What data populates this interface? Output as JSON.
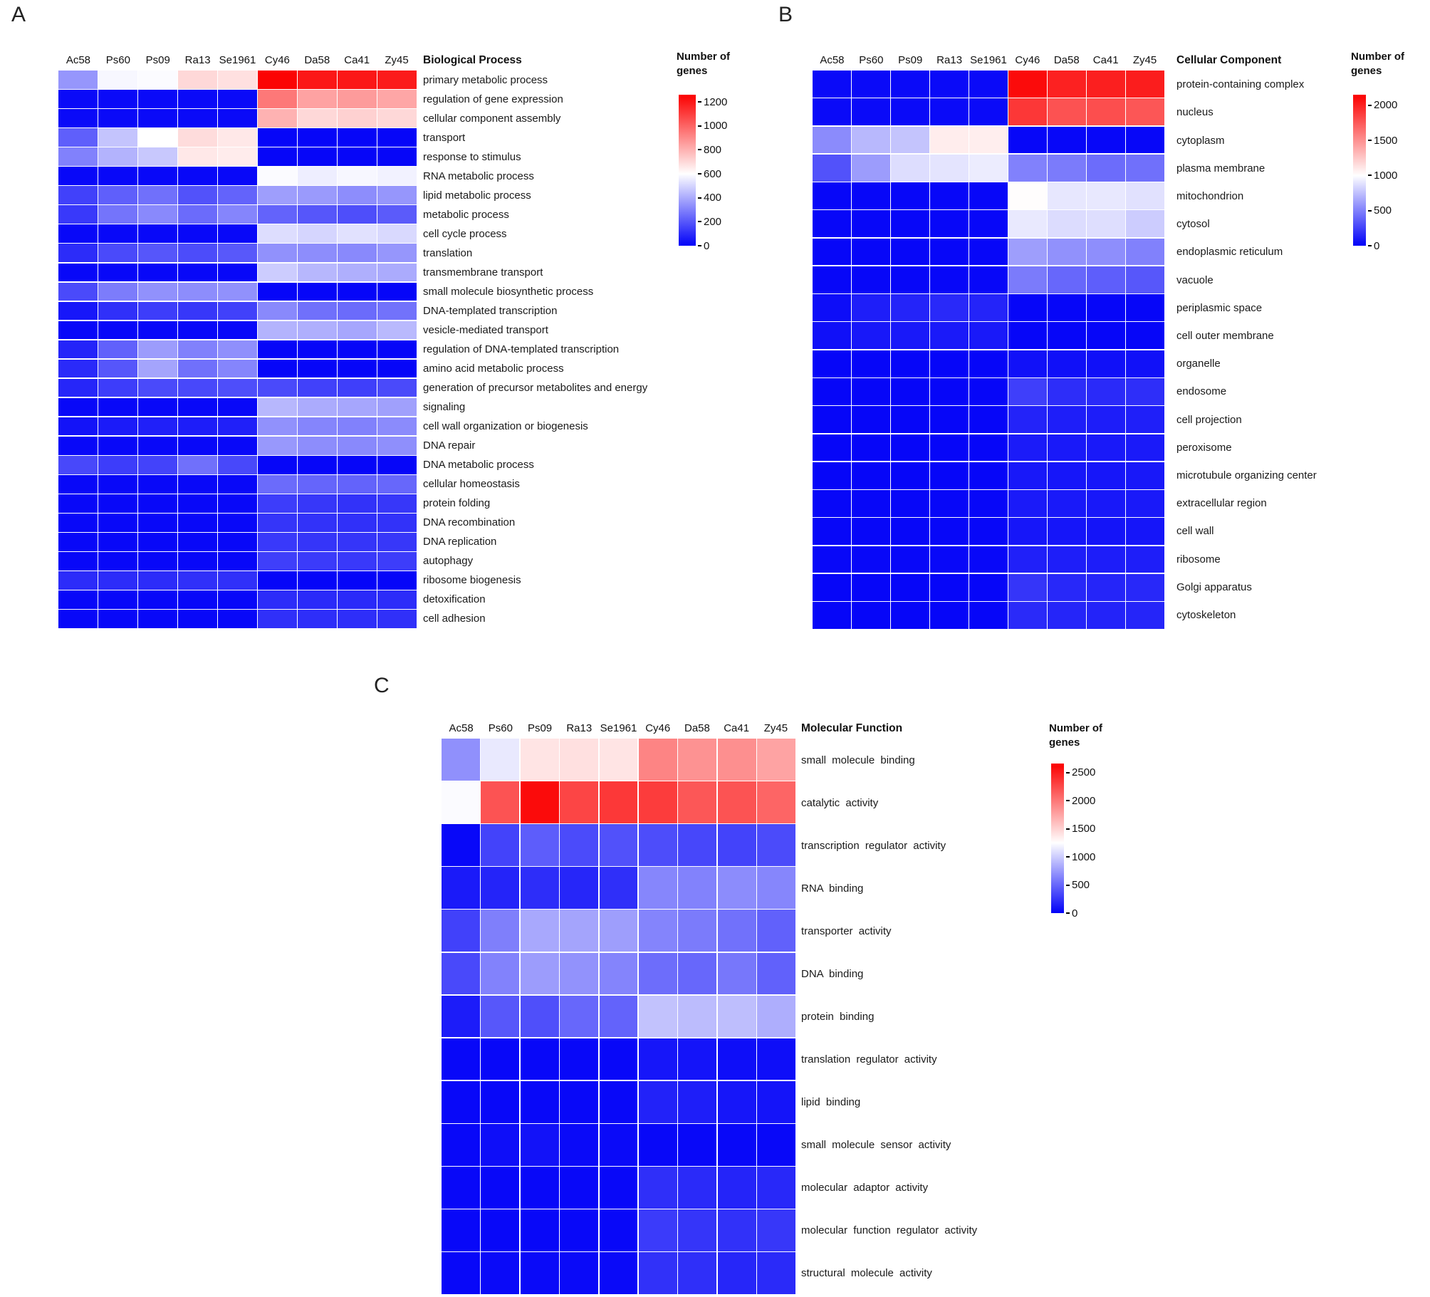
{
  "figure": {
    "background": "#ffffff"
  },
  "colors": {
    "scale_low": "#0202f8",
    "scale_mid": "#ffffff",
    "scale_high": "#fb0000",
    "grid_line": "#ffffff",
    "text": "#1a1a1a"
  },
  "chart_data": [
    {
      "type": "heatmap",
      "panel_label": "A",
      "title": "Biological Process",
      "legend_title": "Number of genes",
      "colormap": "blue-white-red",
      "legend_position": "right",
      "grid": "white lines between cells",
      "columns": [
        "Ac58",
        "Ps60",
        "Ps09",
        "Ra13",
        "Se1961",
        "Cy46",
        "Da58",
        "Ca41",
        "Zy45"
      ],
      "scale": {
        "min": 0,
        "white_at": 600,
        "max": 1260,
        "ticks": [
          1200,
          1000,
          800,
          600,
          400,
          200,
          0
        ]
      },
      "rows": [
        "primary metabolic process",
        "regulation of gene expression",
        "cellular component assembly",
        "transport",
        "response to stimulus",
        "RNA metabolic process",
        "lipid metabolic process",
        "metabolic process",
        "cell cycle process",
        "translation",
        "transmembrane transport",
        "small molecule biosynthetic process",
        "DNA-templated transcription",
        "vesicle-mediated transport",
        "regulation of DNA-templated transcription",
        "amino acid metabolic process",
        "generation of precursor metabolites and energy",
        "signaling",
        "cell wall organization or biogenesis",
        "DNA repair",
        "DNA metabolic process",
        "cellular homeostasis",
        "protein folding",
        "DNA recombination",
        "DNA replication",
        "autophagy",
        "ribosome biogenesis",
        "detoxification",
        "cell adhesion"
      ],
      "values": [
        [
          350,
          580,
          590,
          700,
          680,
          1250,
          1200,
          1200,
          1190
        ],
        [
          20,
          20,
          20,
          20,
          20,
          950,
          840,
          860,
          830
        ],
        [
          20,
          20,
          20,
          20,
          20,
          800,
          700,
          720,
          700
        ],
        [
          220,
          460,
          600,
          690,
          660,
          10,
          10,
          10,
          10
        ],
        [
          300,
          420,
          470,
          660,
          650,
          10,
          10,
          10,
          10
        ],
        [
          15,
          15,
          15,
          15,
          15,
          590,
          560,
          580,
          570
        ],
        [
          150,
          220,
          260,
          190,
          230,
          370,
          360,
          330,
          350
        ],
        [
          130,
          270,
          320,
          250,
          310,
          230,
          200,
          180,
          210
        ],
        [
          15,
          15,
          15,
          15,
          15,
          520,
          500,
          530,
          510
        ],
        [
          100,
          170,
          200,
          175,
          205,
          340,
          330,
          320,
          350
        ],
        [
          15,
          15,
          15,
          15,
          15,
          480,
          430,
          410,
          400
        ],
        [
          170,
          290,
          340,
          330,
          340,
          10,
          10,
          10,
          10
        ],
        [
          50,
          110,
          140,
          125,
          150,
          320,
          260,
          250,
          265
        ],
        [
          15,
          15,
          15,
          15,
          15,
          420,
          410,
          390,
          435
        ],
        [
          80,
          225,
          365,
          300,
          335,
          10,
          10,
          10,
          10
        ],
        [
          95,
          200,
          385,
          260,
          310,
          10,
          10,
          10,
          10
        ],
        [
          85,
          140,
          170,
          165,
          180,
          170,
          150,
          145,
          170
        ],
        [
          15,
          15,
          15,
          15,
          15,
          430,
          400,
          390,
          375
        ],
        [
          40,
          60,
          70,
          65,
          70,
          340,
          310,
          300,
          325
        ],
        [
          15,
          15,
          15,
          15,
          15,
          355,
          330,
          320,
          335
        ],
        [
          165,
          140,
          155,
          260,
          165,
          10,
          10,
          10,
          10
        ],
        [
          15,
          15,
          15,
          15,
          15,
          250,
          235,
          230,
          240
        ],
        [
          15,
          15,
          15,
          15,
          15,
          140,
          125,
          115,
          125
        ],
        [
          15,
          15,
          15,
          15,
          15,
          120,
          115,
          110,
          115
        ],
        [
          15,
          15,
          15,
          15,
          15,
          130,
          120,
          120,
          125
        ],
        [
          15,
          15,
          15,
          15,
          15,
          145,
          135,
          130,
          140
        ],
        [
          100,
          100,
          100,
          110,
          110,
          10,
          10,
          10,
          10
        ],
        [
          15,
          15,
          15,
          15,
          15,
          100,
          95,
          95,
          100
        ],
        [
          15,
          15,
          15,
          15,
          15,
          110,
          105,
          105,
          110
        ]
      ]
    },
    {
      "type": "heatmap",
      "panel_label": "B",
      "title": "Cellular Component",
      "legend_title": "Number of genes",
      "colormap": "blue-white-red",
      "legend_position": "right",
      "grid": "white lines between cells",
      "columns": [
        "Ac58",
        "Ps60",
        "Ps09",
        "Ra13",
        "Se1961",
        "Cy46",
        "Da58",
        "Ca41",
        "Zy45"
      ],
      "scale": {
        "min": 0,
        "white_at": 1000,
        "max": 2150,
        "ticks": [
          2000,
          1500,
          1000,
          500,
          0
        ]
      },
      "rows": [
        "protein-containing complex",
        "nucleus",
        "cytoplasm",
        "plasma membrane",
        "mitochondrion",
        "cytosol",
        "endoplasmic reticulum",
        "vacuole",
        "periplasmic space",
        "cell outer membrane",
        "organelle",
        "endosome",
        "cell projection",
        "peroxisome",
        "microtubule organizing center",
        "extracellular region",
        "cell wall",
        "ribosome",
        "Golgi apparatus",
        "cytoskeleton"
      ],
      "values": [
        [
          30,
          30,
          30,
          30,
          30,
          2100,
          2000,
          2010,
          2020
        ],
        [
          30,
          30,
          30,
          30,
          30,
          1900,
          1780,
          1800,
          1760
        ],
        [
          540,
          720,
          765,
          1080,
          1075,
          20,
          20,
          20,
          20
        ],
        [
          315,
          610,
          865,
          895,
          925,
          500,
          480,
          420,
          435
        ],
        [
          20,
          20,
          20,
          20,
          20,
          1010,
          905,
          910,
          880
        ],
        [
          20,
          20,
          20,
          20,
          20,
          915,
          860,
          870,
          800
        ],
        [
          20,
          20,
          20,
          20,
          20,
          615,
          565,
          555,
          500
        ],
        [
          20,
          20,
          20,
          20,
          20,
          480,
          400,
          365,
          335
        ],
        [
          45,
          110,
          135,
          155,
          135,
          15,
          15,
          15,
          15
        ],
        [
          55,
          85,
          90,
          95,
          90,
          15,
          15,
          15,
          15
        ],
        [
          15,
          15,
          15,
          15,
          15,
          60,
          55,
          55,
          60
        ],
        [
          15,
          15,
          15,
          15,
          15,
          240,
          170,
          160,
          175
        ],
        [
          15,
          15,
          15,
          15,
          15,
          130,
          110,
          105,
          115
        ],
        [
          15,
          15,
          15,
          15,
          15,
          100,
          90,
          90,
          95
        ],
        [
          15,
          15,
          15,
          15,
          15,
          85,
          80,
          80,
          85
        ],
        [
          20,
          20,
          20,
          20,
          20,
          95,
          90,
          85,
          90
        ],
        [
          20,
          20,
          20,
          20,
          20,
          80,
          75,
          70,
          75
        ],
        [
          25,
          25,
          25,
          25,
          25,
          120,
          110,
          105,
          110
        ],
        [
          15,
          15,
          15,
          15,
          15,
          200,
          150,
          140,
          150
        ],
        [
          15,
          15,
          15,
          15,
          15,
          160,
          140,
          130,
          140
        ]
      ]
    },
    {
      "type": "heatmap",
      "panel_label": "C",
      "title": "Molecular Function",
      "legend_title": "Number of genes",
      "colormap": "blue-white-red",
      "legend_position": "right",
      "grid": "white lines between cells",
      "columns": [
        "Ac58",
        "Ps60",
        "Ps09",
        "Ra13",
        "Se1961",
        "Cy46",
        "Da58",
        "Ca41",
        "Zy45"
      ],
      "scale": {
        "min": 0,
        "white_at": 1250,
        "max": 2660,
        "ticks": [
          2500,
          2000,
          1500,
          1000,
          500,
          0
        ]
      },
      "rows": [
        "small molecule binding",
        "catalytic activity",
        "transcription regulator activity",
        "RNA binding",
        "transporter activity",
        "DNA binding",
        "protein binding",
        "translation regulator activity",
        "lipid binding",
        "small molecule sensor activity",
        "molecular adaptor activity",
        "molecular function regulator activity",
        "structural molecule activity"
      ],
      "values": [
        [
          700,
          1140,
          1400,
          1420,
          1400,
          1930,
          1850,
          1870,
          1760
        ],
        [
          1230,
          2200,
          2600,
          2280,
          2350,
          2330,
          2180,
          2200,
          2100
        ],
        [
          30,
          320,
          450,
          360,
          390,
          370,
          340,
          320,
          360
        ],
        [
          120,
          170,
          210,
          180,
          220,
          650,
          630,
          680,
          650
        ],
        [
          310,
          620,
          820,
          800,
          770,
          640,
          600,
          550,
          470
        ],
        [
          350,
          630,
          760,
          710,
          640,
          530,
          500,
          580,
          470
        ],
        [
          130,
          420,
          380,
          500,
          480,
          950,
          920,
          930,
          850
        ],
        [
          30,
          30,
          30,
          30,
          30,
          100,
          90,
          60,
          60
        ],
        [
          30,
          30,
          30,
          30,
          30,
          160,
          140,
          100,
          90
        ],
        [
          30,
          60,
          80,
          40,
          40,
          30,
          30,
          30,
          30
        ],
        [
          30,
          30,
          30,
          30,
          30,
          220,
          200,
          170,
          190
        ],
        [
          30,
          30,
          30,
          30,
          30,
          280,
          250,
          230,
          260
        ],
        [
          30,
          40,
          40,
          40,
          40,
          230,
          220,
          180,
          200
        ]
      ]
    }
  ]
}
